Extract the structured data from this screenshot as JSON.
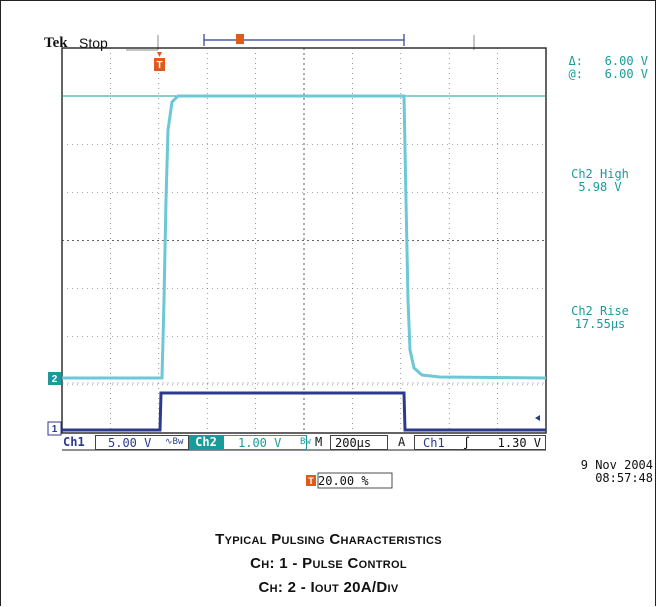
{
  "header": {
    "brand": "Tek",
    "status": "Stop"
  },
  "cursor_readout": {
    "delta_label": "Δ:",
    "delta_value": "6.00 V",
    "at_label": "@:",
    "at_value": "6.00 V"
  },
  "measurements": [
    {
      "label": "Ch2 High",
      "value": "5.98 V"
    },
    {
      "label": "Ch2 Rise",
      "value": "17.55μs"
    }
  ],
  "markers": {
    "trigger": "T",
    "ch2": "2",
    "ch1": "1"
  },
  "bottom_bar": {
    "ch1_label": "Ch1",
    "ch1_scale": "5.00 V",
    "ch1_coupling": "∿Bw",
    "ch2_label": "Ch2",
    "ch2_scale": "1.00 V",
    "ch2_coupling": "Bw",
    "timebase_label": "M",
    "timebase": "200μs",
    "trigger_mode": "A",
    "trigger_source": "Ch1",
    "trigger_slope": "∫",
    "trigger_level": "1.30 V"
  },
  "date": "9 Nov 2004",
  "time": "08:57:48",
  "trigger_position": "20.00 %",
  "caption": {
    "line1": "Typical  Pulsing Characteristics",
    "line2": "Ch: 1 - Pulse Control",
    "line3": "Ch: 2 - Iout 20A/Div"
  },
  "colors": {
    "ch1": "#2b3a8f",
    "ch2": "#6cc8d4",
    "accent": "#1a9b9b",
    "trigger": "#e05a1e"
  }
}
